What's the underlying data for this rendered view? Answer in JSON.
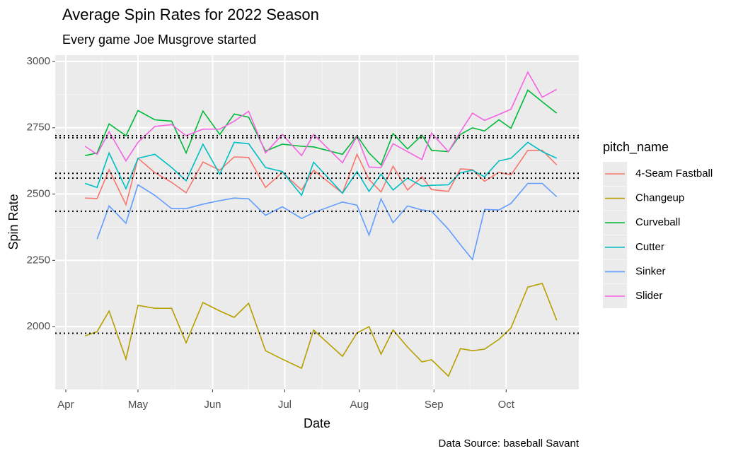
{
  "chart_data": {
    "type": "line",
    "title": "Average Spin Rates for 2022 Season",
    "subtitle": "Every game Joe Musgrove started",
    "x_label": "Date",
    "y_label": "Spin Rate",
    "caption": "Data Source: baseball Savant",
    "legend_title": "pitch_name",
    "x": [
      8,
      13,
      18,
      25,
      30,
      37,
      44,
      50,
      57,
      64,
      70,
      76,
      83,
      90,
      98,
      103,
      115,
      121,
      126,
      131,
      136,
      142,
      148,
      152,
      159,
      164,
      169,
      174,
      180,
      185,
      192,
      198,
      204
    ],
    "xlim": [
      -4.4,
      213.2
    ],
    "xticks": [
      {
        "value": 0,
        "label": "Apr"
      },
      {
        "value": 30,
        "label": "May"
      },
      {
        "value": 61,
        "label": "Jun"
      },
      {
        "value": 91,
        "label": "Jul"
      },
      {
        "value": 122,
        "label": "Aug"
      },
      {
        "value": 153,
        "label": "Sep"
      },
      {
        "value": 183,
        "label": "Oct"
      }
    ],
    "ylim": [
      1763,
      3024
    ],
    "yticks": [
      2000,
      2250,
      2500,
      2750,
      3000
    ],
    "grid": true,
    "hlines": [
      2720,
      2712,
      2578,
      2560,
      2435,
      1975
    ],
    "series": [
      {
        "name": "4-Seam Fastball",
        "color": "#F8766D",
        "values": [
          2485,
          2483,
          2592,
          2460,
          2635,
          2581,
          2544,
          2505,
          2621,
          2590,
          2640,
          2638,
          2525,
          2582,
          2515,
          2590,
          2503,
          2650,
          2555,
          2508,
          2605,
          2515,
          2565,
          2517,
          2510,
          2595,
          2592,
          2548,
          2582,
          2572,
          2665,
          2665,
          2610
        ]
      },
      {
        "name": "Changeup",
        "color": "#B79F00",
        "values": [
          1965,
          1981,
          2059,
          1877,
          2080,
          2069,
          2069,
          1939,
          2091,
          2059,
          2035,
          2088,
          1909,
          1877,
          1843,
          1987,
          1888,
          1976,
          2000,
          1896,
          1987,
          1923,
          1867,
          1875,
          1813,
          1917,
          1909,
          1915,
          1952,
          1995,
          2149,
          2163,
          2024
        ]
      },
      {
        "name": "Curveball",
        "color": "#00BA38",
        "values": [
          2645,
          2655,
          2765,
          2720,
          2815,
          2780,
          2775,
          2655,
          2813,
          2725,
          2802,
          2790,
          2662,
          2688,
          2680,
          2678,
          2650,
          2720,
          2655,
          2610,
          2728,
          2670,
          2722,
          2665,
          2660,
          2725,
          2750,
          2738,
          2780,
          2748,
          2892,
          2848,
          2805
        ]
      },
      {
        "name": "Cutter",
        "color": "#00BFC4",
        "values": [
          2540,
          2525,
          2655,
          2520,
          2635,
          2650,
          2600,
          2550,
          2688,
          2575,
          2695,
          2690,
          2600,
          2585,
          2495,
          2620,
          2503,
          2585,
          2510,
          2575,
          2515,
          2560,
          2530,
          2533,
          2535,
          2580,
          2590,
          2565,
          2625,
          2635,
          2695,
          2660,
          2635
        ]
      },
      {
        "name": "Sinker",
        "color": "#619CFF",
        "values": [
          null,
          2330,
          2455,
          2390,
          2535,
          2495,
          2445,
          2445,
          2462,
          2475,
          2485,
          2482,
          2420,
          2452,
          2408,
          2430,
          2470,
          2458,
          2345,
          2482,
          2392,
          2455,
          2440,
          2435,
          2367,
          2309,
          2253,
          2442,
          2440,
          2465,
          2540,
          2540,
          2490
        ]
      },
      {
        "name": "Slider",
        "color": "#F564E3",
        "values": [
          2680,
          2650,
          2735,
          2625,
          2695,
          2755,
          2762,
          2720,
          2745,
          2745,
          2775,
          2812,
          2655,
          2725,
          2645,
          2725,
          2618,
          2718,
          2602,
          2600,
          2690,
          2660,
          2630,
          2730,
          2660,
          2735,
          2805,
          2778,
          2800,
          2820,
          2960,
          2865,
          2895
        ]
      }
    ]
  }
}
